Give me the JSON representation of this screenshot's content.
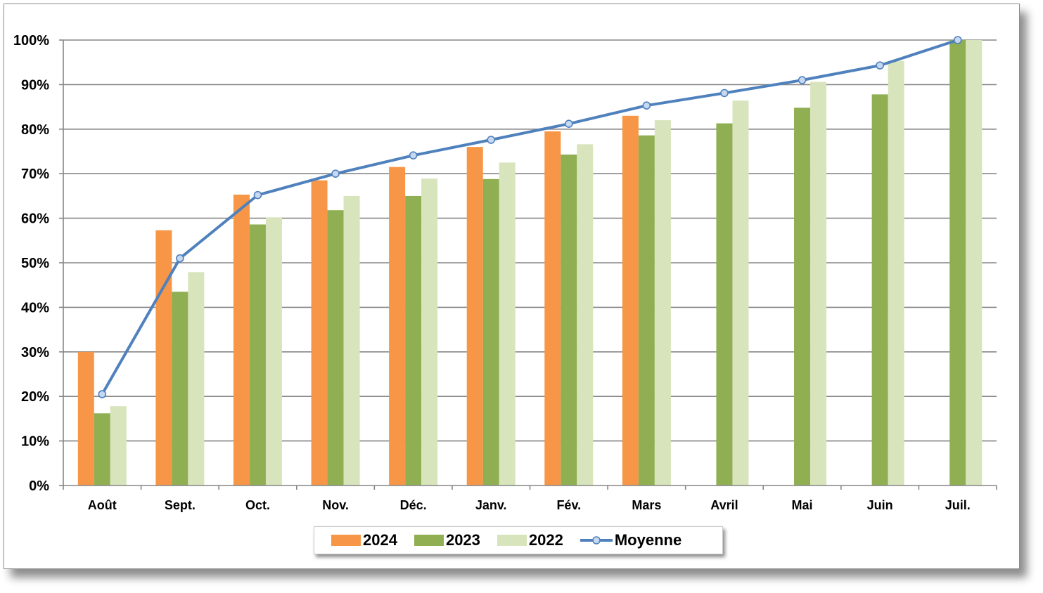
{
  "chart_data": {
    "type": "bar",
    "title": "",
    "xlabel": "",
    "ylabel": "",
    "ylim": [
      0,
      100
    ],
    "yticks": [
      0,
      10,
      20,
      30,
      40,
      50,
      60,
      70,
      80,
      90,
      100
    ],
    "ytick_labels": [
      "0%",
      "10%",
      "20%",
      "30%",
      "40%",
      "50%",
      "60%",
      "70%",
      "80%",
      "90%",
      "100%"
    ],
    "grid": "horizontal",
    "legend": "bottom",
    "categories": [
      "Août",
      "Sept.",
      "Oct.",
      "Nov.",
      "Déc.",
      "Janv.",
      "Fév.",
      "Mars",
      "Avril",
      "Mai",
      "Juin",
      "Juil."
    ],
    "series": [
      {
        "name": "2024",
        "kind": "bar",
        "color": "#f79646",
        "values": [
          30,
          57.3,
          65.3,
          68.5,
          71.5,
          76,
          79.5,
          83,
          null,
          null,
          null,
          null
        ]
      },
      {
        "name": "2023",
        "kind": "bar",
        "color": "#8faf52",
        "values": [
          16.2,
          43.5,
          58.6,
          61.8,
          65,
          68.8,
          74.3,
          78.6,
          81.3,
          84.8,
          87.8,
          100
        ]
      },
      {
        "name": "2022",
        "kind": "bar",
        "color": "#d8e4bc",
        "values": [
          17.8,
          47.9,
          60.2,
          65,
          68.9,
          72.5,
          76.6,
          82,
          86.4,
          90.6,
          95.3,
          100
        ]
      },
      {
        "name": "Moyenne",
        "kind": "line",
        "color": "#4f81bd",
        "marker_fill": "#c6d9f1",
        "values": [
          20.5,
          51,
          65.2,
          70,
          74.1,
          77.6,
          81.2,
          85.3,
          88.1,
          91,
          94.3,
          100
        ]
      }
    ]
  }
}
